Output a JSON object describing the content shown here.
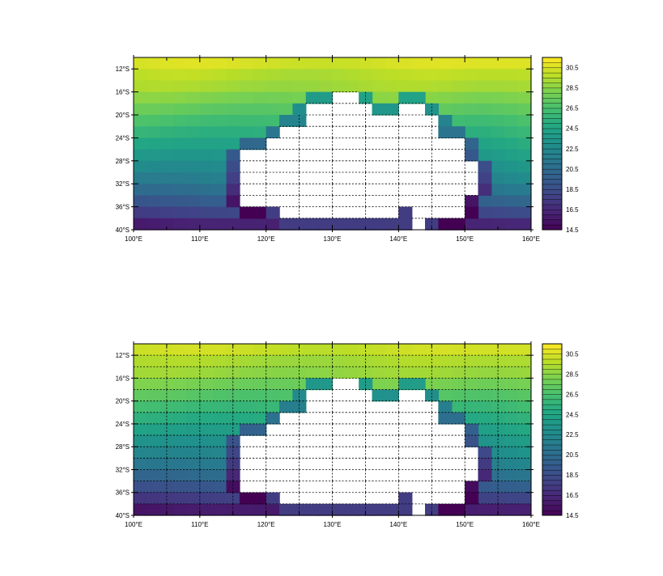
{
  "figure": {
    "panels": [
      {
        "y_ticks": [
          "12°S",
          "16°S",
          "20°S",
          "24°S",
          "28°S",
          "32°S",
          "36°S",
          "40°S"
        ],
        "x_ticks": [
          "100°E",
          "110°E",
          "120°E",
          "130°E",
          "140°E",
          "150°E",
          "160°E"
        ],
        "grid_lines": "land-only dashed",
        "colorbar": {
          "labels": [
            "30.5",
            "28.5",
            "26.5",
            "24.5",
            "22.5",
            "20.5",
            "18.5",
            "16.5",
            "14.5"
          ],
          "min": 14.5,
          "max": 31.5,
          "step": 0.5,
          "colormap": "viridis"
        }
      },
      {
        "y_ticks": [
          "12°S",
          "16°S",
          "20°S",
          "24°S",
          "28°S",
          "32°S",
          "36°S",
          "40°S"
        ],
        "x_ticks": [
          "100°E",
          "110°E",
          "120°E",
          "130°E",
          "140°E",
          "150°E",
          "160°E"
        ],
        "grid_lines": "full dashed",
        "colorbar": {
          "labels": [
            "30.5",
            "28.5",
            "26.5",
            "24.5",
            "22.5",
            "20.5",
            "18.5",
            "16.5",
            "14.5"
          ],
          "min": 14.5,
          "max": 31.5,
          "step": 0.5,
          "colormap": "viridis"
        }
      }
    ]
  },
  "chart_data": [
    {
      "type": "heatmap",
      "variable_range": [
        14.5,
        31.5
      ],
      "lon_range": [
        100,
        160
      ],
      "lat_range": [
        -40,
        -10
      ],
      "land_mask": "Australia (white)",
      "colors": {
        "land": "#ffffff",
        "coastal_band": "#3e4989",
        "southern_coast": "#443a83"
      }
    },
    {
      "type": "heatmap",
      "variable_range": [
        14.5,
        31.5
      ],
      "lon_range": [
        100,
        160
      ],
      "lat_range": [
        -40,
        -10
      ],
      "land_mask": "Australia (white)",
      "colors": {
        "land": "#ffffff",
        "coastal_band": "#3e4989",
        "southern_coast": "#443a83"
      }
    }
  ]
}
